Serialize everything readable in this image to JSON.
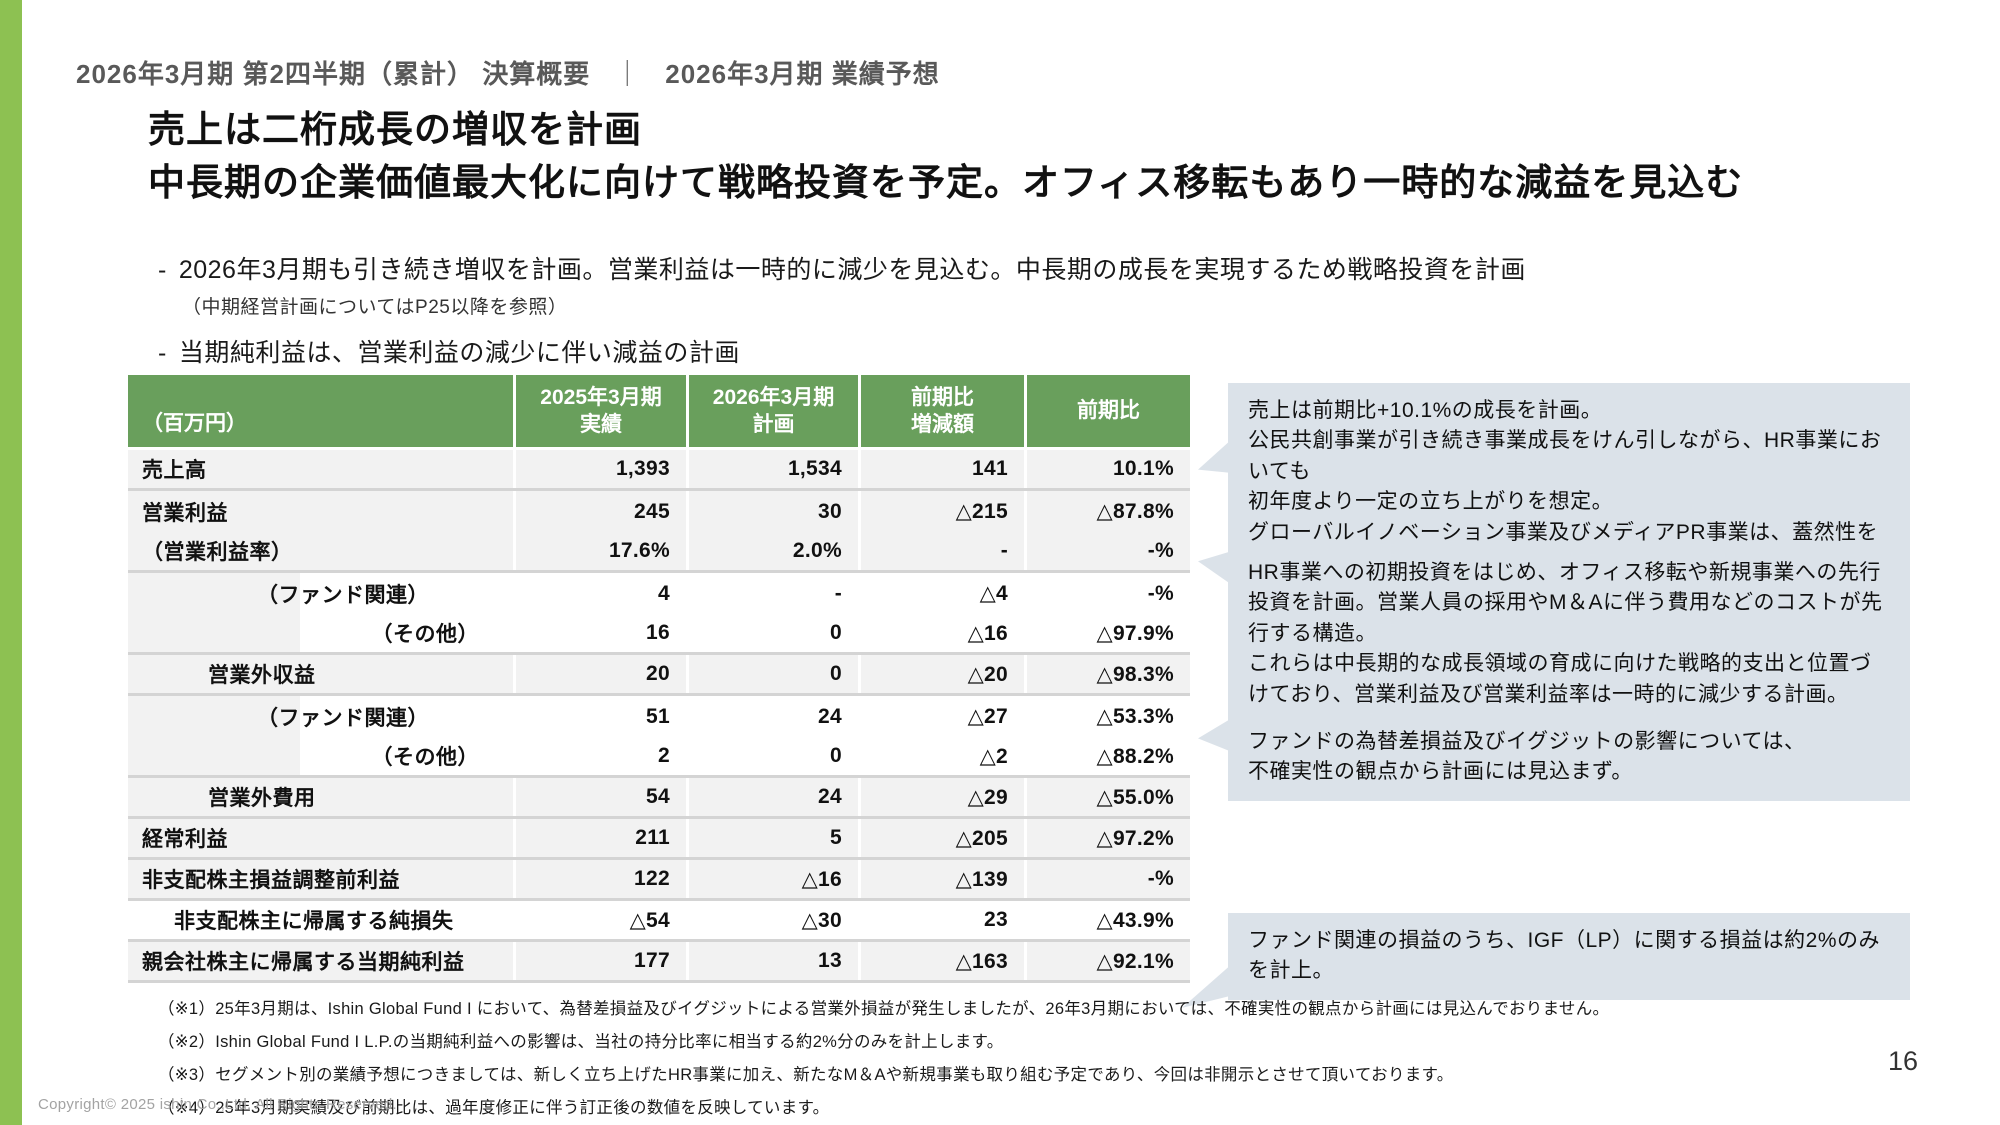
{
  "colors": {
    "accent_green": "#8dc152",
    "header_green": "#699f5c",
    "row_gray": "#f2f2f2",
    "callout_bg": "#dbe2e9",
    "separator_gray": "#d4d4d4",
    "breadcrumb_gray": "#595959"
  },
  "header": {
    "left": "2026年3月期 第2四半期（累計） 決算概要",
    "divider": "｜",
    "right": "2026年3月期 業績予想"
  },
  "title": {
    "line1": "売上は二桁成長の増収を計画",
    "line2": "中長期の企業価値最大化に向けて戦略投資を予定。オフィス移転もあり一時的な減益を見込む"
  },
  "bullets": {
    "marker": "-",
    "bullet1": "2026年3月期も引き続き増収を計画。営業利益は一時的に減少を見込む。中長期の成長を実現するため戦略投資を計画",
    "bullet1_note": "（中期経営計画についてはP25以降を参照）",
    "bullet2": "当期純利益は、営業利益の減少に伴い減益の計画"
  },
  "table": {
    "unit_label": "（百万円）",
    "headers": [
      {
        "line1": "2025年3月期",
        "line2": "実績"
      },
      {
        "line1": "2026年3月期",
        "line2": "計画"
      },
      {
        "line1": "前期比",
        "line2": "増減額"
      },
      {
        "line1": "前期比",
        "line2": ""
      }
    ],
    "rows": [
      {
        "label": "売上高",
        "indent": "0",
        "bg": "gray",
        "strip": 0,
        "sep": true,
        "values": [
          "1,393",
          "1,534",
          "141",
          "10.1%"
        ]
      },
      {
        "label": "営業利益",
        "indent": "0",
        "bg": "gray",
        "strip": 0,
        "sep": false,
        "values": [
          "245",
          "30",
          "△215",
          "△87.8%"
        ]
      },
      {
        "label": "（営業利益率）",
        "indent": "0",
        "bg": "gray",
        "strip": 0,
        "sep": true,
        "values": [
          "17.6%",
          "2.0%",
          "-",
          "-%"
        ]
      },
      {
        "label": "（ファンド関連）",
        "indent": "R1",
        "bg": "white",
        "strip": 172,
        "sep": false,
        "values": [
          "4",
          "-",
          "△4",
          "-%"
        ]
      },
      {
        "label": "（その他）",
        "indent": "R2",
        "bg": "white",
        "strip": 172,
        "sep": true,
        "values": [
          "16",
          "0",
          "△16",
          "△97.9%"
        ]
      },
      {
        "label": "営業外収益",
        "indent": "2",
        "bg": "gray",
        "strip": 0,
        "sep": true,
        "values": [
          "20",
          "0",
          "△20",
          "△98.3%"
        ]
      },
      {
        "label": "（ファンド関連）",
        "indent": "R1",
        "bg": "white",
        "strip": 172,
        "sep": false,
        "values": [
          "51",
          "24",
          "△27",
          "△53.3%"
        ]
      },
      {
        "label": "（その他）",
        "indent": "R2",
        "bg": "white",
        "strip": 172,
        "sep": true,
        "values": [
          "2",
          "0",
          "△2",
          "△88.2%"
        ]
      },
      {
        "label": "営業外費用",
        "indent": "2",
        "bg": "gray",
        "strip": 0,
        "sep": true,
        "values": [
          "54",
          "24",
          "△29",
          "△55.0%"
        ]
      },
      {
        "label": "経常利益",
        "indent": "0",
        "bg": "gray",
        "strip": 0,
        "sep": true,
        "values": [
          "211",
          "5",
          "△205",
          "△97.2%"
        ]
      },
      {
        "label": "非支配株主損益調整前利益",
        "indent": "0",
        "bg": "gray",
        "strip": 0,
        "sep": true,
        "values": [
          "122",
          "△16",
          "△139",
          "-%"
        ]
      },
      {
        "label": "非支配株主に帰属する純損失",
        "indent": "1",
        "bg": "white",
        "strip": 0,
        "sep": true,
        "values": [
          "△54",
          "△30",
          "23",
          "△43.9%"
        ]
      },
      {
        "label": "親会社株主に帰属する当期純利益",
        "indent": "0",
        "bg": "gray",
        "strip": 0,
        "sep": true,
        "values": [
          "177",
          "13",
          "△163",
          "△92.1%"
        ]
      }
    ]
  },
  "callouts": [
    {
      "text": "売上は前期比+10.1%の成長を計画。\n公民共創事業が引き続き事業成長をけん引しながら、HR事業においても\n初年度より一定の立ち上がりを想定。\nグローバルイノベーション事業及びメディアPR事業は、蓋然性を重視。"
    },
    {
      "text": "HR事業への初期投資をはじめ、オフィス移転や新規事業への先行投資を計画。営業人員の採用やM＆Aに伴う費用などのコストが先行する構造。\nこれらは中長期的な成長領域の育成に向けた戦略的支出と位置づけており、営業利益及び営業利益率は一時的に減少する計画。"
    },
    {
      "text": "ファンドの為替差損益及びイグジットの影響については、\n不確実性の観点から計画には見込まず。"
    },
    {
      "text": "ファンド関連の損益のうち、IGF（LP）に関する損益は約2%のみを計上。"
    }
  ],
  "footnotes": [
    "（※1）25年3月期は、Ishin Global Fund I において、為替差損益及びイグジットによる営業外損益が発生しましたが、26年3月期においては、不確実性の観点から計画には見込んでおりません。",
    "（※2）Ishin Global Fund I L.P.の当期純利益への影響は、当社の持分比率に相当する約2%分のみを計上します。",
    "（※3）セグメント別の業績予想につきましては、新しく立ち上げたHR事業に加え、新たなM＆Aや新規事業も取り組む予定であり、今回は非開示とさせて頂いております。",
    "（※4）25年3月期実績及び前期比は、過年度修正に伴う訂正後の数値を反映しています。"
  ],
  "footer": {
    "copyright": "Copyright©  2025 ishin Co.,Ltd. All Rights Reserved.",
    "page_number": "16"
  }
}
